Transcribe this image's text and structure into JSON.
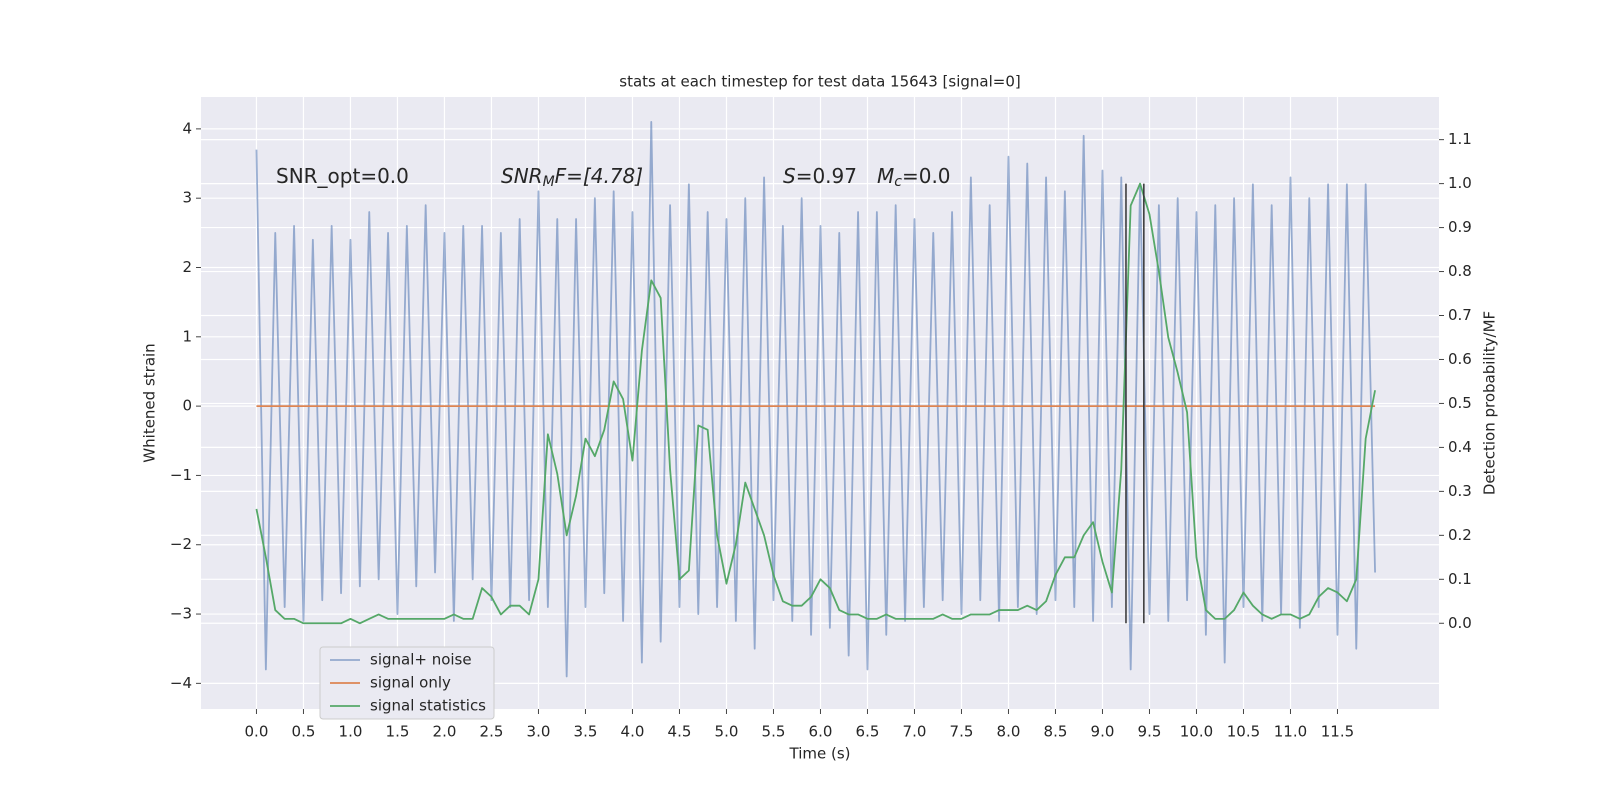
{
  "chart_data": {
    "type": "line",
    "title": "stats at each timestep for test data 15643 [signal=0]",
    "x_label": "Time (s)",
    "y_label": "Whitened strain",
    "y2_label": "Detection probability/MF",
    "xlim": [
      -0.59,
      12.58
    ],
    "ylim": [
      -4.37,
      4.46
    ],
    "y2lim": [
      -0.195,
      1.197
    ],
    "xticks": [
      {
        "value": 0,
        "label": "0.0"
      },
      0.5,
      {
        "value": 1,
        "label": "1.0"
      },
      1.5,
      {
        "value": 2,
        "label": "2.0"
      },
      2.5,
      {
        "value": 3,
        "label": "3.0"
      },
      3.5,
      {
        "value": 4,
        "label": "4.0"
      },
      4.5,
      {
        "value": 5,
        "label": "5.0"
      },
      5.5,
      {
        "value": 6,
        "label": "6.0"
      },
      6.5,
      {
        "value": 7,
        "label": "7.0"
      },
      7.5,
      {
        "value": 8,
        "label": "8.0"
      },
      8.5,
      {
        "value": 9,
        "label": "9.0"
      },
      9.5,
      {
        "value": 10,
        "label": "10.0"
      },
      10.5,
      {
        "value": 11,
        "label": "11.0"
      },
      11.5
    ],
    "yticks": [
      {
        "value": -4,
        "label": "−4"
      },
      {
        "value": -3,
        "label": "−3"
      },
      {
        "value": -2,
        "label": "−2"
      },
      {
        "value": -1,
        "label": "−1"
      },
      0,
      1,
      2,
      3,
      4
    ],
    "y2ticks": [
      {
        "value": 0,
        "label": "0.0"
      },
      0.1,
      0.2,
      0.3,
      0.4,
      0.5,
      0.6,
      0.7,
      0.8,
      0.9,
      {
        "value": 1,
        "label": "1.0"
      },
      1.1
    ],
    "grid": true,
    "legend": "lower left",
    "x": [
      0.0,
      0.1,
      0.2,
      0.3,
      0.4,
      0.5,
      0.6,
      0.7,
      0.8,
      0.9,
      1.0,
      1.1,
      1.2,
      1.3,
      1.4,
      1.5,
      1.6,
      1.7,
      1.8,
      1.9,
      2.0,
      2.1,
      2.2,
      2.3,
      2.4,
      2.5,
      2.6,
      2.7,
      2.8,
      2.9,
      3.0,
      3.1,
      3.2,
      3.3,
      3.4,
      3.5,
      3.6,
      3.7,
      3.8,
      3.9,
      4.0,
      4.1,
      4.2,
      4.3,
      4.4,
      4.5,
      4.6,
      4.7,
      4.8,
      4.9,
      5.0,
      5.1,
      5.2,
      5.3,
      5.4,
      5.5,
      5.6,
      5.7,
      5.8,
      5.9,
      6.0,
      6.1,
      6.2,
      6.3,
      6.4,
      6.5,
      6.6,
      6.7,
      6.8,
      6.9,
      7.0,
      7.1,
      7.2,
      7.3,
      7.4,
      7.5,
      7.6,
      7.7,
      7.8,
      7.9,
      8.0,
      8.1,
      8.2,
      8.3,
      8.4,
      8.5,
      8.6,
      8.7,
      8.8,
      8.9,
      9.0,
      9.1,
      9.2,
      9.3,
      9.4,
      9.5,
      9.6,
      9.7,
      9.8,
      9.9,
      10.0,
      10.1,
      10.2,
      10.3,
      10.4,
      10.5,
      10.6,
      10.7,
      10.8,
      10.9,
      11.0,
      11.1,
      11.2,
      11.3,
      11.4,
      11.5,
      11.6,
      11.7,
      11.8,
      11.9
    ],
    "series": [
      {
        "name": "signal+ noise",
        "color": "#4c72b0",
        "alpha": 0.55,
        "values": [
          3.7,
          -3.8,
          2.5,
          -2.9,
          2.6,
          -3.1,
          2.4,
          -2.8,
          2.6,
          -2.7,
          2.4,
          -2.6,
          2.8,
          -2.5,
          2.5,
          -3.0,
          2.6,
          -2.6,
          2.9,
          -2.4,
          2.5,
          -3.1,
          2.6,
          -2.5,
          2.6,
          -2.8,
          2.5,
          -2.9,
          2.7,
          -2.8,
          3.1,
          -2.9,
          2.7,
          -3.9,
          2.7,
          -2.9,
          3.0,
          -2.7,
          3.1,
          -3.1,
          2.8,
          -3.7,
          4.1,
          -3.4,
          2.9,
          -2.9,
          3.2,
          -3.0,
          2.8,
          -2.9,
          2.7,
          -3.1,
          3.0,
          -3.5,
          3.3,
          -2.8,
          2.6,
          -3.1,
          3.0,
          -3.3,
          2.6,
          -3.2,
          2.5,
          -3.6,
          2.8,
          -3.8,
          2.8,
          -3.3,
          2.9,
          -3.1,
          2.7,
          -2.9,
          2.5,
          -2.8,
          2.8,
          -3.0,
          3.3,
          -2.8,
          2.9,
          -3.1,
          3.6,
          -2.9,
          3.5,
          -3.0,
          3.3,
          -2.8,
          3.1,
          -2.9,
          3.9,
          -3.1,
          3.4,
          -2.9,
          3.3,
          -3.8,
          3.2,
          -3.0,
          2.9,
          -3.1,
          3.0,
          -2.8,
          2.8,
          -3.3,
          2.9,
          -3.7,
          3.0,
          -2.9,
          3.2,
          -3.1,
          2.9,
          -3.0,
          3.3,
          -3.2,
          3.0,
          -2.9,
          3.2,
          -3.3,
          3.2,
          -3.5,
          3.2,
          -2.4
        ]
      },
      {
        "name": "signal only",
        "color": "#dd8452",
        "alpha": 1,
        "values": [
          0,
          0,
          0,
          0,
          0,
          0,
          0,
          0,
          0,
          0,
          0,
          0,
          0,
          0,
          0,
          0,
          0,
          0,
          0,
          0,
          0,
          0,
          0,
          0,
          0,
          0,
          0,
          0,
          0,
          0,
          0,
          0,
          0,
          0,
          0,
          0,
          0,
          0,
          0,
          0,
          0,
          0,
          0,
          0,
          0,
          0,
          0,
          0,
          0,
          0,
          0,
          0,
          0,
          0,
          0,
          0,
          0,
          0,
          0,
          0,
          0,
          0,
          0,
          0,
          0,
          0,
          0,
          0,
          0,
          0,
          0,
          0,
          0,
          0,
          0,
          0,
          0,
          0,
          0,
          0,
          0,
          0,
          0,
          0,
          0,
          0,
          0,
          0,
          0,
          0,
          0,
          0,
          0,
          0,
          0,
          0,
          0,
          0,
          0,
          0,
          0,
          0,
          0,
          0,
          0,
          0,
          0,
          0,
          0,
          0,
          0,
          0,
          0,
          0,
          0,
          0,
          0,
          0,
          0,
          0
        ]
      },
      {
        "name": "signal statistics",
        "color": "#55a868",
        "alpha": 1,
        "axis": "y2",
        "values": [
          0.26,
          0.15,
          0.03,
          0.01,
          0.01,
          0.0,
          0.0,
          0.0,
          0.0,
          0.0,
          0.01,
          0.0,
          0.01,
          0.02,
          0.01,
          0.01,
          0.01,
          0.01,
          0.01,
          0.01,
          0.01,
          0.02,
          0.01,
          0.01,
          0.08,
          0.06,
          0.02,
          0.04,
          0.04,
          0.02,
          0.1,
          0.43,
          0.34,
          0.2,
          0.29,
          0.42,
          0.38,
          0.44,
          0.55,
          0.51,
          0.37,
          0.62,
          0.78,
          0.74,
          0.35,
          0.1,
          0.12,
          0.45,
          0.44,
          0.2,
          0.09,
          0.18,
          0.32,
          0.26,
          0.2,
          0.11,
          0.05,
          0.04,
          0.04,
          0.06,
          0.1,
          0.08,
          0.03,
          0.02,
          0.02,
          0.01,
          0.01,
          0.02,
          0.01,
          0.01,
          0.01,
          0.01,
          0.01,
          0.02,
          0.01,
          0.01,
          0.02,
          0.02,
          0.02,
          0.03,
          0.03,
          0.03,
          0.04,
          0.03,
          0.05,
          0.11,
          0.15,
          0.15,
          0.2,
          0.23,
          0.14,
          0.07,
          0.35,
          0.95,
          1.0,
          0.93,
          0.8,
          0.65,
          0.57,
          0.48,
          0.15,
          0.03,
          0.01,
          0.01,
          0.03,
          0.07,
          0.04,
          0.02,
          0.01,
          0.02,
          0.02,
          0.01,
          0.02,
          0.06,
          0.08,
          0.07,
          0.05,
          0.1,
          0.42,
          0.53
        ]
      }
    ],
    "vlines": [
      {
        "x": 9.25,
        "y2": [
          0,
          1
        ],
        "color": "#333333"
      },
      {
        "x": 9.44,
        "y2": [
          0,
          1
        ],
        "color": "#333333"
      }
    ],
    "annotations": [
      [
        {
          "text": "SNR_opt=0.0",
          "style": "normal"
        }
      ],
      [
        {
          "text": "SNR",
          "style": "italic"
        },
        {
          "text": "M",
          "style": "italic-sub"
        },
        {
          "text": "F=[4.78]",
          "style": "mixed"
        }
      ],
      [
        {
          "text": "S",
          "style": "italic"
        },
        {
          "text": "=0.97",
          "style": "normal"
        }
      ],
      [
        {
          "text": "M",
          "style": "italic"
        },
        {
          "text": "c",
          "style": "italic-sub"
        },
        {
          "text": "=0.0",
          "style": "normal"
        }
      ]
    ]
  }
}
